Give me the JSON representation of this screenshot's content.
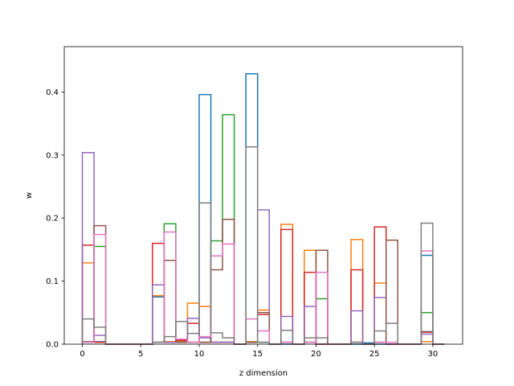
{
  "chart_data": {
    "type": "bar",
    "style": "step outline histogram",
    "xlabel": "z dimension",
    "ylabel": "w",
    "xlim": [
      -1.55,
      32.55
    ],
    "ylim": [
      0,
      0.472
    ],
    "xticks": [
      0,
      5,
      10,
      15,
      20,
      25,
      30
    ],
    "yticks": [
      0.0,
      0.1,
      0.2,
      0.3,
      0.4
    ],
    "ytick_labels": [
      "0.0",
      "0.1",
      "0.2",
      "0.3",
      "0.4"
    ],
    "bin_edges": [
      0,
      1,
      2,
      3,
      4,
      5,
      6,
      7,
      8,
      9,
      10,
      11,
      12,
      13,
      14,
      15,
      16,
      17,
      18,
      19,
      20,
      21,
      22,
      23,
      24,
      25,
      26,
      27,
      28,
      29,
      30,
      31
    ],
    "series": [
      {
        "color": "#1f77b4",
        "values": [
          0.003,
          0.004,
          0,
          0,
          0,
          0,
          0.075,
          0.003,
          0.004,
          0.003,
          0.396,
          0.003,
          0.003,
          0,
          0.429,
          0.003,
          0,
          0,
          0,
          0.003,
          0,
          0,
          0,
          0,
          0.002,
          0,
          0,
          0,
          0,
          0.141,
          0
        ]
      },
      {
        "color": "#ff7f0e",
        "values": [
          0.129,
          0.003,
          0,
          0,
          0,
          0,
          0.077,
          0.004,
          0.004,
          0.065,
          0.06,
          0.003,
          0.003,
          0,
          0.004,
          0.054,
          0,
          0.19,
          0,
          0.149,
          0,
          0,
          0,
          0.166,
          0,
          0.097,
          0,
          0,
          0,
          0.004,
          0
        ]
      },
      {
        "color": "#2ca02c",
        "values": [
          0.003,
          0.155,
          0,
          0,
          0,
          0,
          0.003,
          0.191,
          0.003,
          0.003,
          0.003,
          0.164,
          0.364,
          0,
          0.003,
          0.003,
          0,
          0.003,
          0,
          0.003,
          0.072,
          0,
          0,
          0.003,
          0,
          0.003,
          0,
          0,
          0,
          0.05,
          0
        ]
      },
      {
        "color": "#d62728",
        "values": [
          0.157,
          0.003,
          0,
          0,
          0,
          0,
          0.16,
          0.003,
          0.006,
          0.033,
          0.003,
          0.003,
          0.003,
          0,
          0.003,
          0.047,
          0,
          0.182,
          0,
          0.114,
          0,
          0,
          0,
          0.118,
          0,
          0.186,
          0,
          0,
          0,
          0.019,
          0
        ]
      },
      {
        "color": "#9467bd",
        "values": [
          0.304,
          0.014,
          0,
          0,
          0,
          0,
          0.094,
          0.003,
          0.003,
          0.041,
          0.01,
          0.003,
          0.003,
          0,
          0.003,
          0.213,
          0,
          0.044,
          0,
          0.06,
          0,
          0,
          0,
          0.053,
          0,
          0.074,
          0,
          0,
          0,
          0.016,
          0
        ]
      },
      {
        "color": "#8c564b",
        "values": [
          0.004,
          0.188,
          0,
          0,
          0,
          0,
          0.003,
          0.133,
          0.003,
          0.003,
          0.003,
          0.118,
          0.198,
          0,
          0.003,
          0.05,
          0,
          0.003,
          0,
          0.003,
          0.149,
          0,
          0,
          0.003,
          0,
          0.003,
          0.165,
          0,
          0,
          0.02,
          0
        ]
      },
      {
        "color": "#e377c2",
        "values": [
          0.003,
          0.174,
          0,
          0,
          0,
          0,
          0.003,
          0.178,
          0.008,
          0.003,
          0.012,
          0.14,
          0.159,
          0,
          0.04,
          0.021,
          0,
          0.003,
          0,
          0.003,
          0.114,
          0,
          0,
          0.003,
          0,
          0.003,
          0.003,
          0,
          0,
          0.148,
          0
        ]
      },
      {
        "color": "#7f7f7f",
        "values": [
          0.04,
          0.027,
          0,
          0,
          0,
          0,
          0.003,
          0.012,
          0.036,
          0.017,
          0.224,
          0.018,
          0.01,
          0,
          0.313,
          0.003,
          0,
          0.022,
          0,
          0.01,
          0.01,
          0,
          0,
          0.003,
          0,
          0.021,
          0.033,
          0,
          0,
          0.192,
          0
        ]
      }
    ]
  }
}
